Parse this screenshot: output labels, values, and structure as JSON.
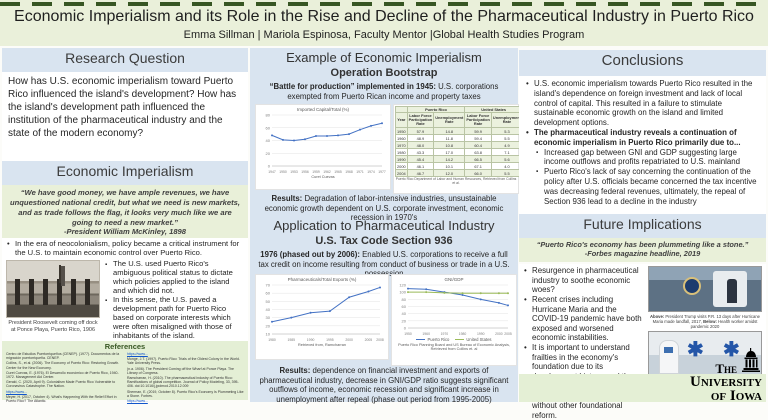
{
  "header": {
    "title": "Economic Imperialism and its Role in the Rise and Decline of the Pharmaceutical Industry in Puerto Rico",
    "authors": "Emma Sillman | Mariola Espinosa, Faculty Mentor |Global Health Studies Program"
  },
  "left": {
    "research_question": {
      "heading": "Research Question",
      "body": "How has U.S. economic imperialism toward Puerto Rico influenced the island's development?  How has the island's development path influenced the institution of the pharmaceutical industry and the state of the modern economy?"
    },
    "economic_imperialism": {
      "heading": "Economic Imperialism",
      "quote": "“We have good money, we have ample revenues, we have unquestioned national credit, but what we need is new markets, and as trade follows the flag, it looks very much like we are going to need a new market.”",
      "attribution": "-President William McKinley, 1898",
      "bullet": "In the era of neocolonialism, policy became a critical instrument for the U.S. to maintain economic control over Puerto Rico.",
      "sub_bullets": [
        "The U.S. used Puerto Rico's ambiguous political status to dictate which policies applied to the island and which did not.",
        "In this sense, the U.S. paved a development path for Puerto Rico based on corporate interests which were often misaligned with those of inhabitants of the island."
      ],
      "photo_caption": "President Roosevelt coming off dock at Ponce Playa, Puerto Rico, 1906"
    },
    "references": {
      "heading": "References",
      "columns": [
        [
          {
            "t": "Centro de Estudios Puertorriqueños (CENEP). (1977). Documentos de la migración puertorriqueña. CENEP."
          },
          {
            "t": "Collins, S., et al. (2006). The Economy of Puerto Rico: Restoring Growth. Center for the New Economy."
          },
          {
            "t": "Curet Cuevas, E. (1976). El Desarrollo económico de Puerto Rico, 1940-1972. Management Aid Center."
          },
          {
            "t": "Gerald, C. (2020, April 9). Colonialism Made Puerto Rico Vulnerable to Coronavirus Catastrophe. The Nation."
          },
          {
            "t": "https://www...",
            "link": true
          },
          {
            "t": "Meyer, H. (2017, October 4). What's Happening With the Relief Effort in Puerto Rico? The Atlantic."
          }
        ],
        [
          {
            "t": "https://www...",
            "link": true
          },
          {
            "t": "Monge, J.T. (1997). Puerto Rico: Trials of the Oldest Colony in the World. Yale University Press."
          },
          {
            "t": "(n.a. 1906). The President Coming off the Wharf at Ponce Playa. The Library of Congress."
          },
          {
            "t": "Ramcharran, H. (2010). The pharmaceutical industry of Puerto Rico: Ramifications of global competition. Journal of Policy Modeling, 33, 395-406. doi:10.1016/j.jpolmod.2010.12.009"
          },
          {
            "t": "Sherman, E. (2019, October 8). Puerto Rico's Economy Is Plummeting Like a Stone. Forbes."
          },
          {
            "t": "https://www...",
            "link": true
          }
        ]
      ]
    }
  },
  "middle": {
    "example": {
      "heading": "Example of Economic Imperialism",
      "subheading": "Operation Bootstrap",
      "intro_bold": "“Battle for production” implemented in 1945:",
      "intro_rest": " U.S. corporations exempted from Puerto Rican income and property taxes",
      "results_label": "Results:",
      "results": " Degradation of labor-intensive industries, unsustainable economic growth dependent on U.S. corporate investment, economic recession in 1970's"
    },
    "application": {
      "heading": "Application to Pharmaceutical Industry",
      "subheading": "U.S. Tax Code Section 936",
      "intro_bold": "1976 (phased out by 2006):",
      "intro_rest": " Enabled U.S. corporations to receive a full tax credit on income resulting from conduct of business or trade in a U.S. possession",
      "results_label": "Results:",
      "results": "  dependence on financial investment and exports of pharmaceutical industry, decrease in GNI/GDP ratio suggests significant outflows of income, economic recession and significant increase in unemployment after repeal (phase out period from 1995-2005)"
    }
  },
  "right": {
    "conclusions": {
      "heading": "Conclusions",
      "bullet1": "U.S. economic imperialism towards Puerto Rico resulted in the island's dependence on foreign investment and lack of local control of capital.  This resulted in a failure to stimulate sustainable economic growth on the island and limited development options.",
      "bullet2": "The pharmaceutical industry reveals a continuation of economic imperialism in Puerto Rico primarily due to...",
      "sub_bullets": [
        "Increased gap between GNI and GDP suggesting large income outflows and profits repatriated to U.S. mainland",
        "Puerto Rico's lack of say concerning the continuation of the policy after U.S. officials became concerned the tax incentive was decreasing federal revenues, ultimately, the repeal of Section 936 lead to a decline in the industry"
      ]
    },
    "future": {
      "heading": "Future Implications",
      "quote": "“Puerto Rico's economy has been plummeting like a stone.”",
      "attribution": "-Forbes magazine headline, 2019",
      "bullets": [
        "Resurgence in pharmaceutical industry to soothe economic woes?",
        "Recent crises including Hurricane Maria and the COVID-19 pandemic have both exposed and worsened economic instabilities.",
        "It is important to understand frailties in the economy's foundation due to its development history, and the industry's inability to stimulate sustained economic growth without other foundational reform."
      ],
      "caption_above_label": "Above:",
      "caption_above": " President Trump visits P.R. 13 days after Hurricane Maria made landfall, 2017, ",
      "caption_below_label": "Below:",
      "caption_below": " Health worker amidst pandemic 2020"
    }
  },
  "logo": {
    "line1": "The",
    "line2": "University",
    "line3": "of Iowa"
  },
  "colors": {
    "header_bg": "#eaf0da",
    "section_bar_bg": "#d9e4f0",
    "quote_bg": "#e9f0d9",
    "references_bg": "#e4efd5",
    "accent_blue": "#4472c4",
    "accent_green": "#9bbb59",
    "link_blue": "#1155cc",
    "dash_green": "#375623"
  },
  "chart_data": [
    {
      "id": "imported-capital",
      "type": "line",
      "title": "Imported Capital/Total (%)",
      "x": [
        1947,
        1950,
        1953,
        1956,
        1959,
        1962,
        1965,
        1968,
        1971,
        1974,
        1977
      ],
      "values": [
        48,
        41,
        40,
        42,
        47,
        47,
        48,
        50,
        57,
        63,
        67
      ],
      "ylim": [
        0,
        80
      ],
      "ytick_step": 20,
      "xlabel": "",
      "ylabel": "",
      "grid": true,
      "source": "Curet Cuevas",
      "color": "#4472c4"
    },
    {
      "id": "labor-table",
      "type": "table",
      "col_groups": [
        "Puerto Rico",
        "United States"
      ],
      "columns": [
        "Year",
        "Labor Force Participation Rate",
        "Unemployment Rate",
        "Labor Force Participation Rate",
        "Unemployment Rate"
      ],
      "rows": [
        [
          "1950",
          "57.9",
          "14.8",
          "59.9",
          "5.3"
        ],
        [
          "1960",
          "48.9",
          "11.8",
          "59.4",
          "5.5"
        ],
        [
          "1970",
          "48.0",
          "10.8",
          "60.4",
          "4.9"
        ],
        [
          "1980",
          "43.3",
          "17.0",
          "63.8",
          "7.1"
        ],
        [
          "1990",
          "45.4",
          "14.2",
          "66.5",
          "5.6"
        ],
        [
          "2000",
          "46.1",
          "10.1",
          "67.1",
          "4.0"
        ],
        [
          "2004",
          "46.7",
          "12.0",
          "66.0",
          "5.5"
        ]
      ],
      "source": "Puerto Rico Department of Labor and Human Resources, Retrieved from Collins et al."
    },
    {
      "id": "pharma-exports",
      "type": "line",
      "title": "Pharmaceuticals/Total Exports (%)",
      "x": [
        1980,
        1985,
        1990,
        1995,
        2000,
        2005,
        2008
      ],
      "values": [
        25,
        30,
        36,
        38,
        55,
        62,
        67
      ],
      "ylim": [
        10,
        70
      ],
      "ytick_step": 10,
      "xlabel": "",
      "ylabel": "",
      "grid": true,
      "source": "Retrieved from, Ramcharran",
      "color": "#4472c4"
    },
    {
      "id": "gni-gdp",
      "type": "line",
      "title": "GNI/GDP",
      "x": [
        1950,
        1960,
        1970,
        1980,
        1990,
        2000,
        2005
      ],
      "series": [
        {
          "name": "Puerto Rico",
          "values": [
            110,
            108,
            100,
            92,
            80,
            70,
            63
          ],
          "color": "#4472c4"
        },
        {
          "name": "United States",
          "values": [
            100,
            100,
            98,
            97,
            97,
            97,
            97
          ],
          "color": "#9bbb59"
        }
      ],
      "ylim": [
        0,
        120
      ],
      "ytick_step": 20,
      "grid": true,
      "legend_position": "bottom",
      "source": "Puerto Rico Planning Board and US Bureau of Economic Analysis, Retrieved from Collins et. al"
    }
  ]
}
